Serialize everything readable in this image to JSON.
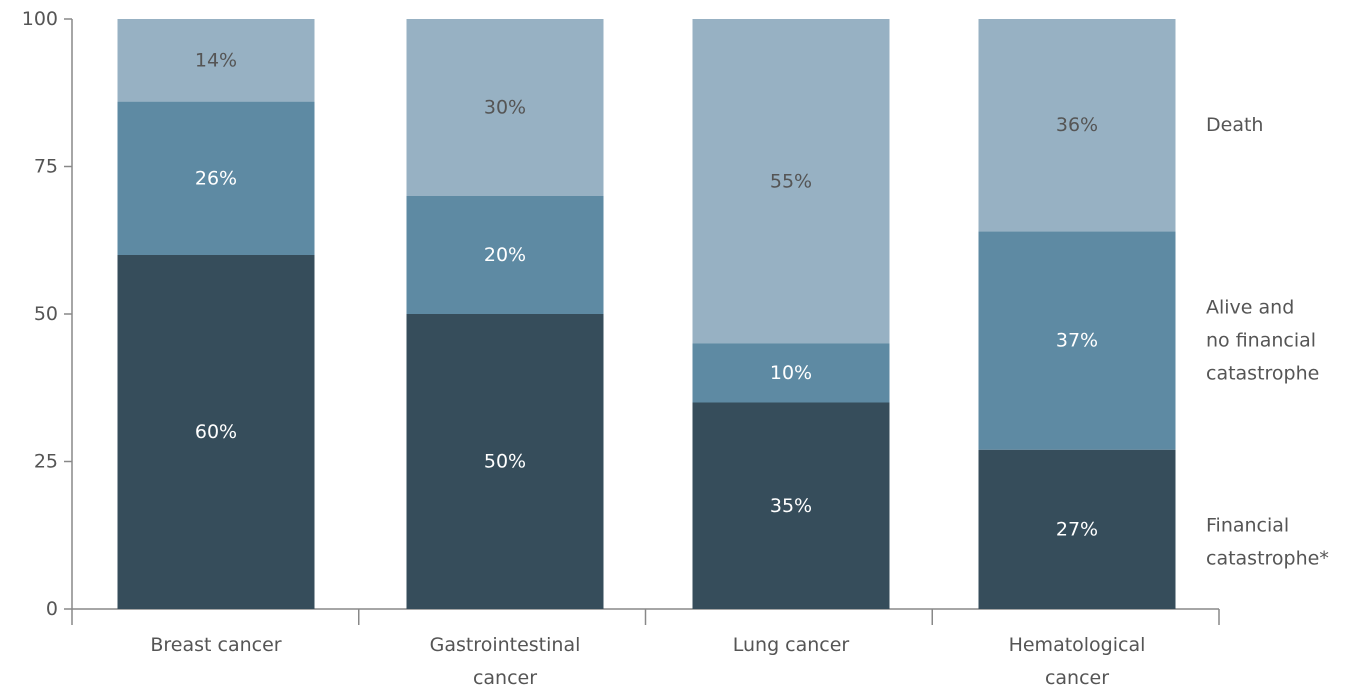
{
  "chart_data": {
    "type": "bar",
    "stacked": true,
    "categories": [
      [
        "Breast cancer"
      ],
      [
        "Gastrointestinal",
        "cancer"
      ],
      [
        "Lung cancer"
      ],
      [
        "Hematological",
        "cancer"
      ]
    ],
    "series": [
      {
        "name": [
          "Financial",
          "catastrophe*"
        ],
        "color": "#364d5b",
        "label_color": "#ffffff",
        "values": [
          60,
          50,
          35,
          27
        ],
        "labels": [
          "60%",
          "50%",
          "35%",
          "27%"
        ]
      },
      {
        "name": [
          "Alive and",
          "no financial",
          "catastrophe"
        ],
        "color": "#5e8aa3",
        "label_color": "#ffffff",
        "values": [
          26,
          20,
          10,
          37
        ],
        "labels": [
          "26%",
          "20%",
          "10%",
          "37%"
        ]
      },
      {
        "name": [
          "Death"
        ],
        "color": "#97b1c3",
        "label_color": "#555555",
        "values": [
          14,
          30,
          55,
          36
        ],
        "labels": [
          "14%",
          "30%",
          "55%",
          "36%"
        ]
      }
    ],
    "yticks": [
      0,
      25,
      50,
      75,
      100
    ],
    "ylim": [
      0,
      100
    ],
    "legend_position": "right",
    "grid": false
  }
}
